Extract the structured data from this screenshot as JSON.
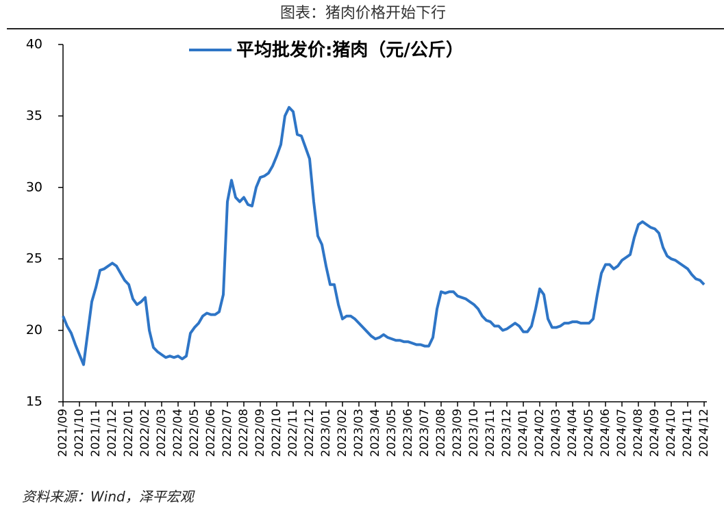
{
  "chart_data": {
    "type": "line",
    "title": "图表：猪肉价格开始下行",
    "source": "资料来源：Wind，泽平宏观",
    "x": [
      "2021/09",
      "2021/09",
      "2021/09",
      "2021/09",
      "2021/10",
      "2021/10",
      "2021/10",
      "2021/10",
      "2021/11",
      "2021/11",
      "2021/11",
      "2021/11",
      "2021/12",
      "2021/12",
      "2021/12",
      "2021/12",
      "2022/01",
      "2022/01",
      "2022/01",
      "2022/01",
      "2022/02",
      "2022/02",
      "2022/02",
      "2022/02",
      "2022/03",
      "2022/03",
      "2022/03",
      "2022/03",
      "2022/04",
      "2022/04",
      "2022/04",
      "2022/04",
      "2022/05",
      "2022/05",
      "2022/05",
      "2022/05",
      "2022/06",
      "2022/06",
      "2022/06",
      "2022/06",
      "2022/07",
      "2022/07",
      "2022/07",
      "2022/07",
      "2022/08",
      "2022/08",
      "2022/08",
      "2022/08",
      "2022/09",
      "2022/09",
      "2022/09",
      "2022/09",
      "2022/10",
      "2022/10",
      "2022/10",
      "2022/10",
      "2022/11",
      "2022/11",
      "2022/11",
      "2022/11",
      "2022/12",
      "2022/12",
      "2022/12",
      "2022/12",
      "2023/01",
      "2023/01",
      "2023/01",
      "2023/01",
      "2023/02",
      "2023/02",
      "2023/02",
      "2023/02",
      "2023/03",
      "2023/03",
      "2023/03",
      "2023/03",
      "2023/04",
      "2023/04",
      "2023/04",
      "2023/04",
      "2023/05",
      "2023/05",
      "2023/05",
      "2023/05",
      "2023/06",
      "2023/06",
      "2023/06",
      "2023/06",
      "2023/07",
      "2023/07",
      "2023/07",
      "2023/07",
      "2023/08",
      "2023/08",
      "2023/08",
      "2023/08",
      "2023/09",
      "2023/09",
      "2023/09",
      "2023/09",
      "2023/10",
      "2023/10",
      "2023/10",
      "2023/10",
      "2023/11",
      "2023/11",
      "2023/11",
      "2023/11",
      "2023/12",
      "2023/12",
      "2023/12",
      "2023/12",
      "2024/01",
      "2024/01",
      "2024/01",
      "2024/01",
      "2024/02",
      "2024/02",
      "2024/02",
      "2024/02",
      "2024/03",
      "2024/03",
      "2024/03",
      "2024/03",
      "2024/04",
      "2024/04",
      "2024/04",
      "2024/04",
      "2024/05",
      "2024/05",
      "2024/05",
      "2024/05",
      "2024/06",
      "2024/06",
      "2024/06",
      "2024/06",
      "2024/07",
      "2024/07",
      "2024/07",
      "2024/07",
      "2024/08",
      "2024/08",
      "2024/08",
      "2024/08",
      "2024/09",
      "2024/09",
      "2024/09",
      "2024/09",
      "2024/10",
      "2024/10",
      "2024/10",
      "2024/10",
      "2024/11",
      "2024/11",
      "2024/11",
      "2024/11",
      "2024/12"
    ],
    "series": [
      {
        "name": "平均批发价:猪肉（元/公斤）",
        "color": "#2e75c6",
        "values": [
          21.0,
          20.3,
          19.8,
          19.0,
          18.3,
          17.6,
          19.8,
          22.0,
          23.0,
          24.2,
          24.3,
          24.5,
          24.7,
          24.5,
          24.0,
          23.5,
          23.2,
          22.2,
          21.8,
          22.0,
          22.3,
          20.0,
          18.8,
          18.5,
          18.3,
          18.1,
          18.2,
          18.1,
          18.2,
          18.0,
          18.2,
          19.8,
          20.2,
          20.5,
          21.0,
          21.2,
          21.1,
          21.1,
          21.3,
          22.5,
          29.0,
          30.5,
          29.3,
          29.0,
          29.3,
          28.8,
          28.7,
          30.0,
          30.7,
          30.8,
          31.0,
          31.5,
          32.2,
          33.0,
          35.0,
          35.6,
          35.3,
          33.7,
          33.6,
          32.8,
          32.0,
          29.0,
          26.6,
          26.0,
          24.5,
          23.2,
          23.2,
          21.8,
          20.8,
          21.0,
          21.0,
          20.8,
          20.5,
          20.2,
          19.9,
          19.6,
          19.4,
          19.5,
          19.7,
          19.5,
          19.4,
          19.3,
          19.3,
          19.2,
          19.2,
          19.1,
          19.0,
          19.0,
          18.9,
          18.9,
          19.5,
          21.5,
          22.7,
          22.6,
          22.7,
          22.7,
          22.4,
          22.3,
          22.2,
          22.0,
          21.8,
          21.5,
          21.0,
          20.7,
          20.6,
          20.3,
          20.3,
          20.0,
          20.1,
          20.3,
          20.5,
          20.3,
          19.9,
          19.9,
          20.3,
          21.5,
          22.9,
          22.5,
          20.8,
          20.2,
          20.2,
          20.3,
          20.5,
          20.5,
          20.6,
          20.6,
          20.5,
          20.5,
          20.5,
          20.8,
          22.5,
          24.0,
          24.6,
          24.6,
          24.3,
          24.5,
          24.9,
          25.1,
          25.3,
          26.5,
          27.4,
          27.6,
          27.4,
          27.2,
          27.1,
          26.8,
          25.8,
          25.2,
          25.0,
          24.9,
          24.7,
          24.5,
          24.3,
          23.9,
          23.6,
          23.5,
          23.2
        ]
      }
    ],
    "ylim": [
      15,
      40
    ],
    "yticks": [
      15,
      20,
      25,
      30,
      35,
      40
    ]
  }
}
